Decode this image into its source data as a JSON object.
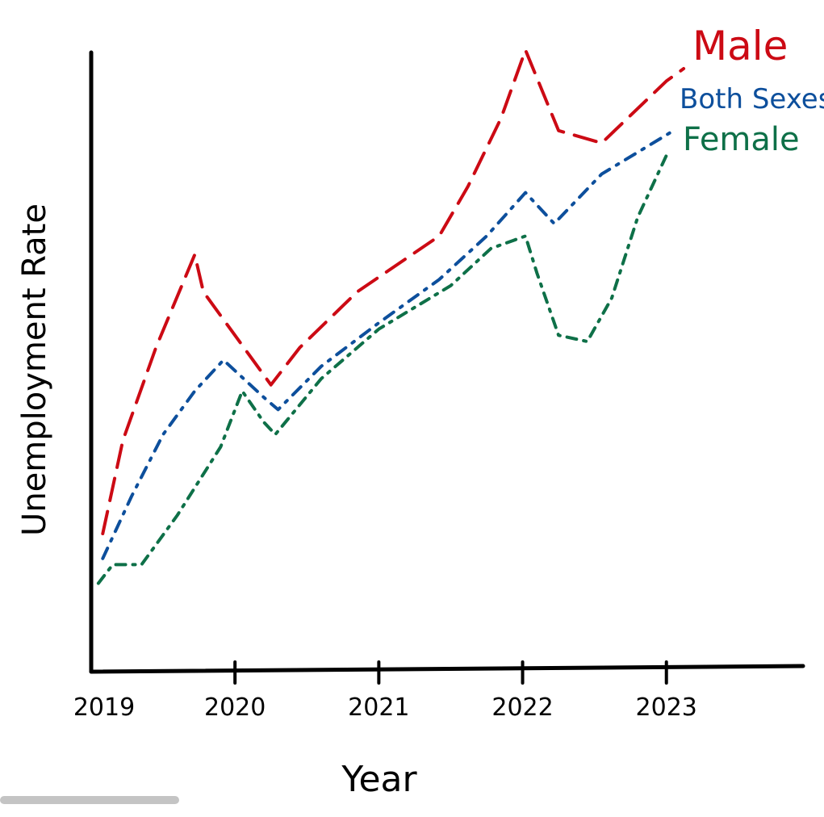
{
  "chart_data": {
    "type": "line",
    "title": "",
    "xlabel": "Year",
    "ylabel": "Unemployment Rate",
    "x_ticks": [
      "2019",
      "2020",
      "2021",
      "2022",
      "2023"
    ],
    "xlim": [
      2019,
      2023.95
    ],
    "ylim": [
      0,
      100
    ],
    "grid": false,
    "legend": "top-right",
    "y_tick_labels": false,
    "series": [
      {
        "name": "Male",
        "color": "#cc0a14",
        "dash": "28 14",
        "x": [
          2019.08,
          2019.22,
          2019.45,
          2019.72,
          2019.78,
          2020.25,
          2020.45,
          2020.85,
          2021.42,
          2021.62,
          2021.85,
          2022.02,
          2022.25,
          2022.55,
          2023.0,
          2023.12
        ],
        "y": [
          22,
          37,
          52,
          67,
          61,
          46,
          52,
          61,
          70,
          78,
          89,
          100,
          87,
          85,
          95,
          97
        ]
      },
      {
        "name": "Both Sexes",
        "color": "#0d4f9c",
        "dash": "14 10 3 10",
        "x": [
          2019.08,
          2019.28,
          2019.5,
          2019.72,
          2019.92,
          2020.2,
          2020.3,
          2020.6,
          2021.0,
          2021.42,
          2021.75,
          2022.02,
          2022.22,
          2022.55,
          2023.05
        ],
        "y": [
          18,
          28,
          38,
          45,
          50,
          44,
          42,
          49,
          56,
          63,
          70,
          77,
          72,
          80,
          87
        ]
      },
      {
        "name": "Female",
        "color": "#0e7048",
        "dash": "12 9 3 9",
        "x": [
          2019.05,
          2019.15,
          2019.35,
          2019.6,
          2019.9,
          2020.05,
          2020.2,
          2020.28,
          2020.6,
          2021.0,
          2021.5,
          2021.78,
          2022.02,
          2022.1,
          2022.25,
          2022.45,
          2022.62,
          2022.8,
          2023.0
        ],
        "y": [
          14,
          17,
          17,
          25,
          36,
          45,
          40,
          38,
          47,
          55,
          62,
          68,
          70,
          64,
          54,
          53,
          60,
          73,
          83
        ]
      }
    ]
  }
}
